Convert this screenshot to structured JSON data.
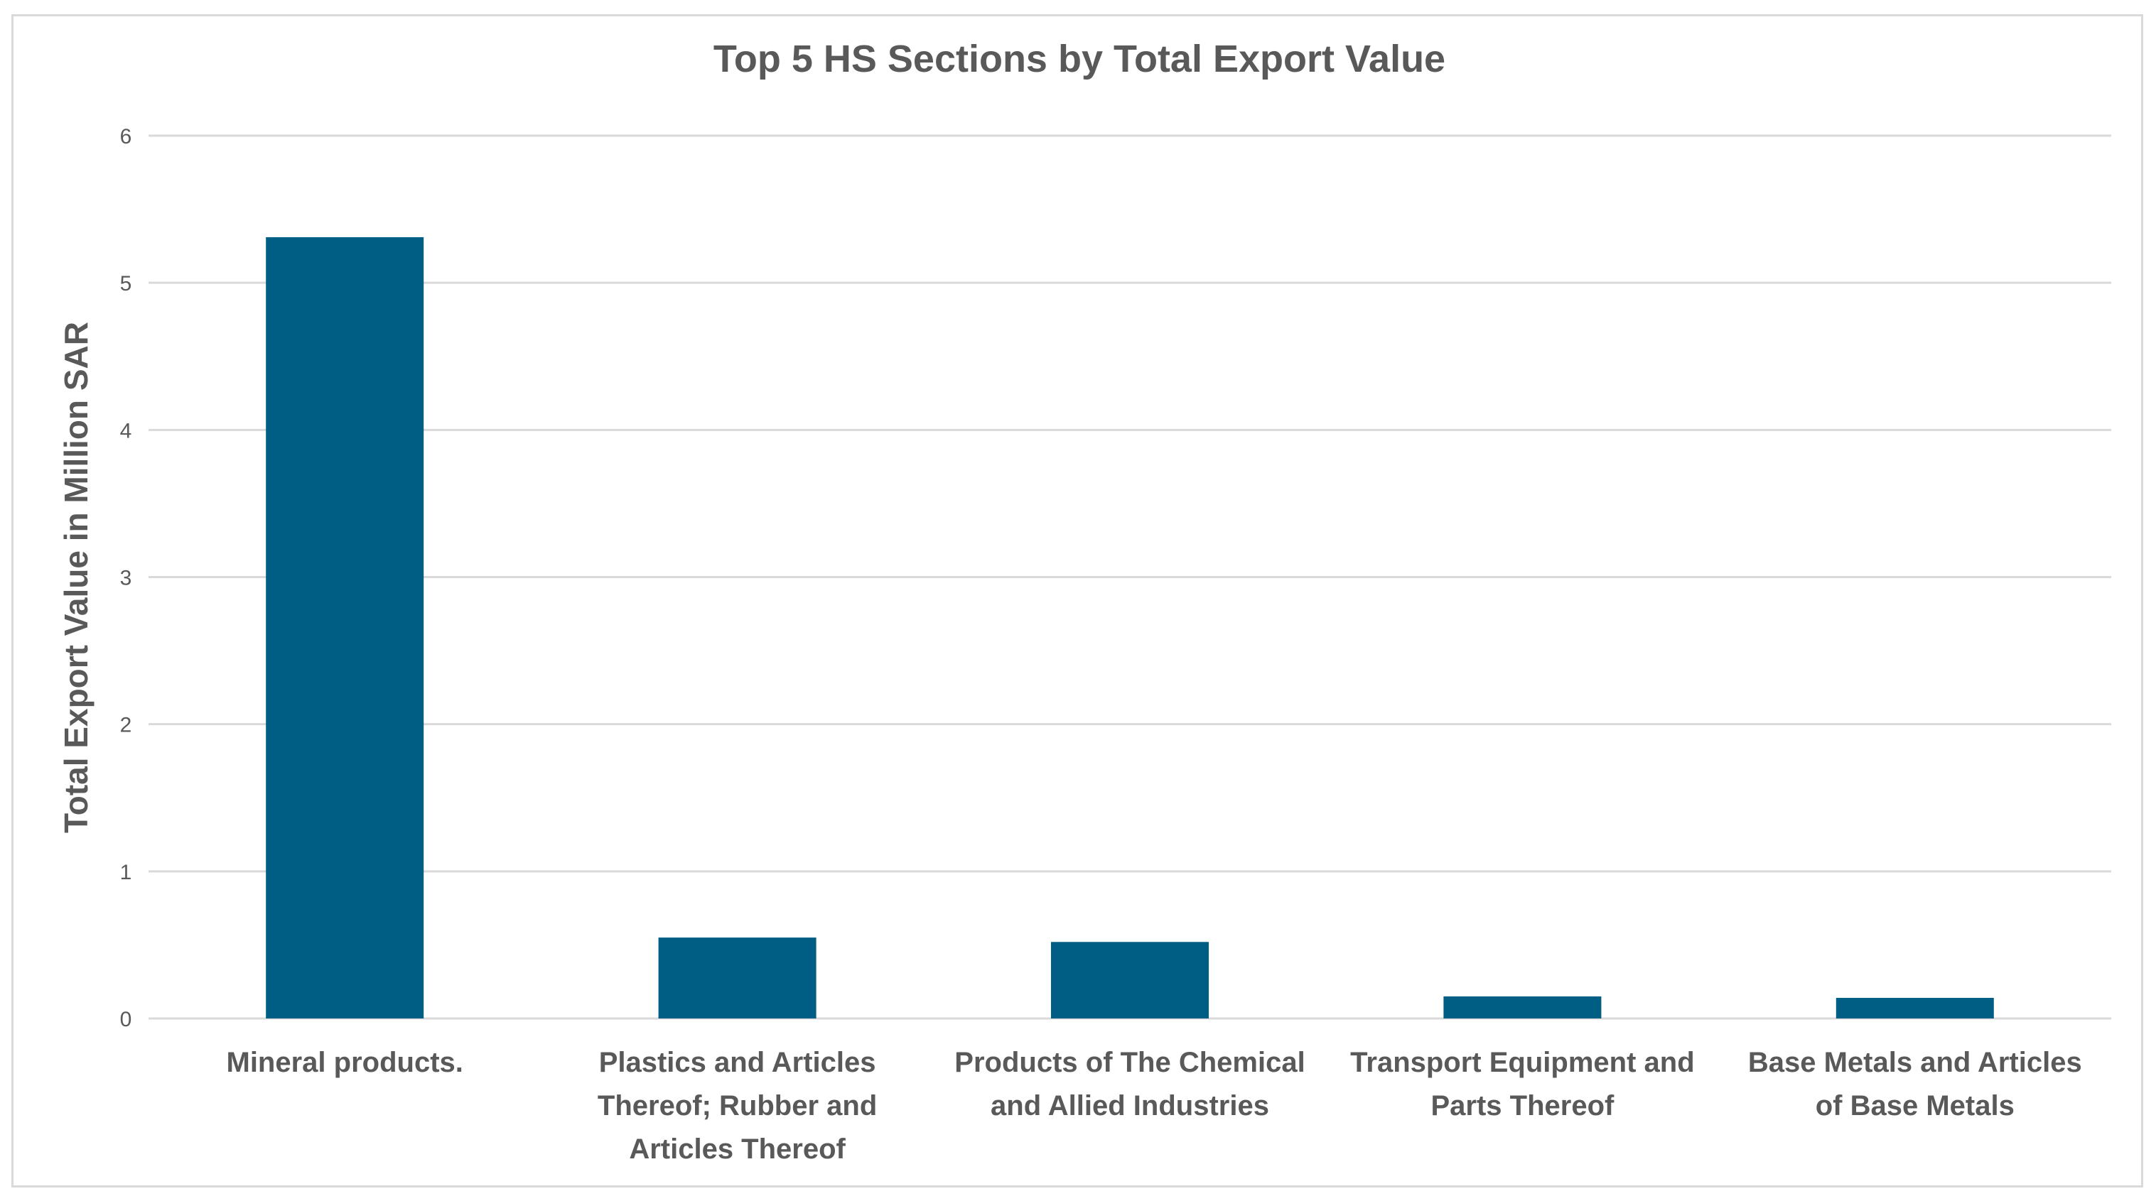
{
  "chart_data": {
    "type": "bar",
    "title": "Top 5 HS Sections by Total Export Value",
    "xlabel": "",
    "ylabel": "Total Export Value in Million SAR",
    "ylim": [
      0,
      6
    ],
    "yticks": [
      0,
      1,
      2,
      3,
      4,
      5,
      6
    ],
    "grid": true,
    "legend": "none",
    "bar_color": "#005E84",
    "categories": [
      [
        "Mineral products."
      ],
      [
        "Plastics and Articles",
        "Thereof; Rubber and",
        "Articles Thereof"
      ],
      [
        "Products of The Chemical",
        "and Allied Industries"
      ],
      [
        "Transport Equipment and",
        "Parts Thereof"
      ],
      [
        "Base Metals and Articles",
        "of Base Metals"
      ]
    ],
    "values": [
      5.31,
      0.55,
      0.52,
      0.15,
      0.14
    ]
  }
}
